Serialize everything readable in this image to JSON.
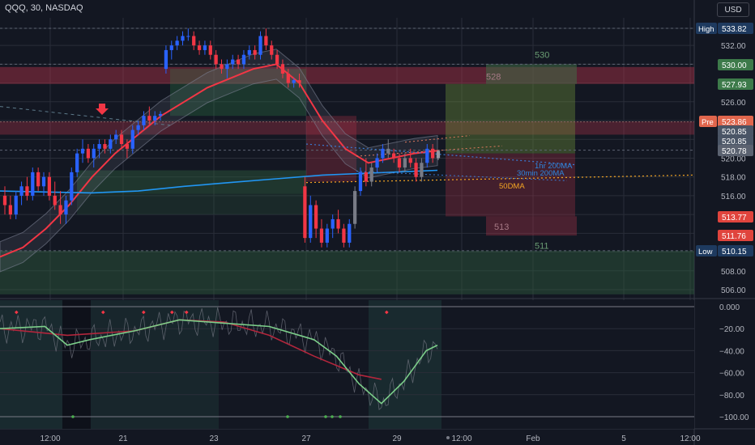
{
  "header": {
    "title": "QQQ, 30, NASDAQ"
  },
  "currency_button": "USD",
  "chart_data": [
    {
      "type": "candlestick",
      "symbol": "QQQ",
      "interval": "30",
      "exchange": "NASDAQ",
      "ylim": [
        505,
        535.5
      ],
      "y_ticks": [
        "506.00",
        "508.00",
        "510.00",
        "512.00",
        "514.00",
        "516.00",
        "518.00",
        "520.00",
        "522.00",
        "524.00",
        "526.00",
        "528.00",
        "530.00",
        "532.00",
        "533.82"
      ],
      "x_tick_labels": [
        "12:00",
        "21",
        "23",
        "27",
        "29",
        "12:00",
        "Feb",
        "5",
        "12:00"
      ],
      "price_labels": [
        {
          "prefix": "High",
          "value": "533.82",
          "color": "#1e3a5f"
        },
        {
          "prefix": "",
          "value": "530.00",
          "color": "#3d7a4a"
        },
        {
          "prefix": "",
          "value": "527.93",
          "color": "#3d7a4a"
        },
        {
          "prefix": "Pre",
          "value": "523.86",
          "color": "#e0664d"
        },
        {
          "prefix": "",
          "value": "520.85",
          "color": "#4a5566"
        },
        {
          "prefix": "",
          "value": "520.85",
          "color": "#4a5566"
        },
        {
          "prefix": "",
          "value": "520.78",
          "color": "#5b6270"
        },
        {
          "prefix": "",
          "value": "513.77",
          "color": "#e0443d"
        },
        {
          "prefix": "",
          "value": "511.76",
          "color": "#e0443d"
        },
        {
          "prefix": "Low",
          "value": "510.15",
          "color": "#1e3a5f"
        }
      ],
      "level_labels": [
        "530",
        "528",
        "513",
        "511"
      ],
      "ma_labels": [
        "1hr 200MA",
        "30min 200MA",
        "50DMA"
      ],
      "candles": [
        [
          516,
          517,
          514,
          515
        ],
        [
          515,
          516,
          513.5,
          514
        ],
        [
          514,
          516.5,
          513.5,
          516
        ],
        [
          516,
          517.5,
          515,
          517
        ],
        [
          517,
          518,
          515.5,
          516
        ],
        [
          516,
          519,
          515.5,
          518.5
        ],
        [
          518.5,
          519,
          516.5,
          517
        ],
        [
          517,
          518.5,
          516,
          518
        ],
        [
          518,
          518.5,
          515.5,
          516
        ],
        [
          516,
          517.5,
          514.5,
          515
        ],
        [
          515,
          516.5,
          513,
          514
        ],
        [
          514,
          516,
          513,
          515.5
        ],
        [
          515.5,
          519,
          515,
          518.5
        ],
        [
          518.5,
          521,
          518,
          520.5
        ],
        [
          520.5,
          522,
          519.5,
          521
        ],
        [
          521,
          521.5,
          519.5,
          520
        ],
        [
          520,
          521.5,
          519,
          521
        ],
        [
          521,
          522,
          520,
          521.5
        ],
        [
          521.5,
          522,
          520.5,
          521
        ],
        [
          521,
          522.5,
          520.5,
          522
        ],
        [
          522,
          523,
          521.5,
          522.5
        ],
        [
          522.5,
          523,
          521,
          521.5
        ],
        [
          521.5,
          522,
          520,
          521
        ],
        [
          521,
          523.5,
          520.5,
          523
        ],
        [
          523,
          524,
          522.5,
          523.5
        ],
        [
          523.5,
          525,
          523,
          524.5
        ],
        [
          524.5,
          525.5,
          523.5,
          524
        ],
        [
          524,
          525,
          523.5,
          524.5
        ],
        [
          524.5,
          525,
          524,
          524.7
        ],
        [
          529.5,
          532,
          529,
          531.5
        ],
        [
          531.5,
          532.5,
          530.5,
          532
        ],
        [
          532,
          533,
          531.5,
          532.5
        ],
        [
          532.5,
          533.5,
          532,
          533
        ],
        [
          533,
          533.8,
          532.5,
          533
        ],
        [
          533,
          533.5,
          531.5,
          532
        ],
        [
          532,
          532.5,
          531,
          531.5
        ],
        [
          531.5,
          532.5,
          531,
          532
        ],
        [
          532,
          532.5,
          530.5,
          531
        ],
        [
          531,
          531.5,
          529.5,
          530
        ],
        [
          530,
          530.5,
          529,
          529.5
        ],
        [
          529.5,
          530.5,
          528.5,
          530
        ],
        [
          530,
          531,
          529.5,
          530.5
        ],
        [
          530.5,
          531,
          529.5,
          530
        ],
        [
          530,
          531.5,
          529.5,
          531
        ],
        [
          531,
          532,
          530.5,
          531.5
        ],
        [
          531.5,
          532,
          530.5,
          531
        ],
        [
          531,
          533.5,
          530.5,
          533
        ],
        [
          533,
          533.8,
          531.5,
          532
        ],
        [
          532,
          532.5,
          530.5,
          531
        ],
        [
          531,
          531.5,
          529.5,
          530
        ],
        [
          530,
          530.5,
          528.5,
          529
        ],
        [
          529,
          529.5,
          527.5,
          528
        ],
        [
          528,
          528.5,
          527.5,
          528.3
        ],
        [
          528.3,
          529,
          527.5,
          528
        ],
        [
          517,
          518,
          511,
          511.5
        ],
        [
          511.5,
          516,
          511,
          515
        ],
        [
          515,
          515.5,
          511.5,
          512.5
        ],
        [
          512.5,
          513.5,
          510.5,
          511
        ],
        [
          511,
          513,
          510.5,
          512.5
        ],
        [
          512.5,
          514,
          511.5,
          513.5
        ],
        [
          513.5,
          514.5,
          512,
          512.5
        ],
        [
          512.5,
          513,
          510.5,
          511
        ],
        [
          511,
          513.5,
          510.5,
          513
        ],
        [
          513,
          517,
          512.5,
          516.5
        ],
        [
          516.5,
          519,
          516,
          518.5
        ],
        [
          518.5,
          520,
          517,
          517.5
        ],
        [
          517.5,
          519.5,
          517,
          519
        ],
        [
          519,
          520.5,
          518.5,
          520
        ],
        [
          520,
          521.5,
          519.5,
          521
        ],
        [
          521,
          522,
          520,
          520.5
        ],
        [
          520.5,
          521,
          519.5,
          520
        ],
        [
          520,
          520.5,
          518.5,
          519
        ],
        [
          519,
          520.5,
          518.5,
          520
        ],
        [
          520,
          521,
          519,
          519.5
        ],
        [
          519.5,
          520,
          517.5,
          518
        ],
        [
          518,
          520,
          517.5,
          519.5
        ],
        [
          519.5,
          521.5,
          519,
          521
        ],
        [
          521,
          521.5,
          519.5,
          520
        ],
        [
          520,
          520.8,
          519.8,
          520.78
        ]
      ],
      "ma_red": [
        [
          0,
          509.5
        ],
        [
          10,
          510.5
        ],
        [
          20,
          512.5
        ],
        [
          30,
          515
        ],
        [
          40,
          518
        ],
        [
          50,
          520.5
        ],
        [
          60,
          522.5
        ],
        [
          70,
          524.5
        ],
        [
          80,
          526
        ],
        [
          90,
          527.5
        ],
        [
          100,
          528.5
        ],
        [
          110,
          529.5
        ],
        [
          120,
          530
        ],
        [
          130,
          528
        ],
        [
          140,
          524
        ],
        [
          150,
          521
        ],
        [
          160,
          519.5
        ],
        [
          170,
          520
        ],
        [
          180,
          520.5
        ],
        [
          190,
          520.8
        ]
      ],
      "ma_blue": [
        [
          0,
          516.5
        ],
        [
          20,
          516.4
        ],
        [
          40,
          516.3
        ],
        [
          60,
          516.5
        ],
        [
          80,
          517
        ],
        [
          100,
          517.4
        ],
        [
          120,
          517.8
        ],
        [
          140,
          518.2
        ],
        [
          160,
          518.4
        ],
        [
          180,
          518.6
        ],
        [
          190,
          518.7
        ]
      ],
      "sub_panel": {
        "ylim": [
          -105,
          5
        ],
        "y_ticks": [
          "0.000",
          "-20.00",
          "-40.00",
          "-60.00",
          "-80.00",
          "-100.00"
        ],
        "green_line": [
          [
            0,
            -20
          ],
          [
            20,
            -18
          ],
          [
            30,
            -35
          ],
          [
            40,
            -30
          ],
          [
            60,
            -22
          ],
          [
            80,
            -12
          ],
          [
            100,
            -15
          ],
          [
            120,
            -18
          ],
          [
            140,
            -30
          ],
          [
            150,
            -45
          ],
          [
            160,
            -70
          ],
          [
            170,
            -88
          ],
          [
            180,
            -68
          ],
          [
            190,
            -40
          ],
          [
            195,
            -35
          ]
        ],
        "red_line": [
          [
            0,
            -20
          ],
          [
            30,
            -26
          ],
          [
            60,
            -22
          ],
          [
            80,
            -12
          ],
          [
            100,
            -14
          ],
          [
            120,
            -26
          ],
          [
            140,
            -45
          ],
          [
            160,
            -62
          ],
          [
            170,
            -66
          ]
        ]
      }
    }
  ]
}
